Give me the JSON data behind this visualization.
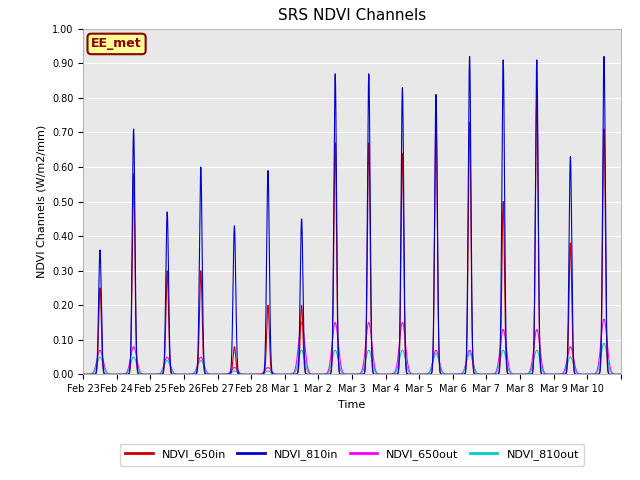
{
  "title": "SRS NDVI Channels",
  "xlabel": "Time",
  "ylabel": "NDVI Channels (W/m2/mm)",
  "ylim": [
    0.0,
    1.0
  ],
  "yticks": [
    0.0,
    0.1,
    0.2,
    0.3,
    0.4,
    0.5,
    0.6,
    0.7,
    0.8,
    0.9,
    1.0
  ],
  "annotation_text": "EE_met",
  "bg_color": "#e8e8e8",
  "line_colors": {
    "NDVI_650in": "#cc0000",
    "NDVI_810in": "#0000cc",
    "NDVI_650out": "#ff00ff",
    "NDVI_810out": "#00cccc"
  },
  "x_tick_labels": [
    "Feb 23",
    "Feb 24",
    "Feb 25",
    "Feb 26",
    "Feb 27",
    "Feb 28",
    "Mar 1",
    "Mar 2",
    "Mar 3",
    "Mar 4",
    "Mar 5",
    "Mar 6",
    "Mar 7",
    "Mar 8",
    "Mar 9",
    "Mar 10"
  ],
  "peaks_810in": [
    0.36,
    0.71,
    0.47,
    0.6,
    0.43,
    0.59,
    0.45,
    0.87,
    0.87,
    0.83,
    0.81,
    0.92,
    0.91,
    0.91,
    0.63,
    0.92
  ],
  "peaks_650in": [
    0.25,
    0.58,
    0.3,
    0.3,
    0.08,
    0.2,
    0.2,
    0.67,
    0.67,
    0.64,
    0.73,
    0.73,
    0.5,
    0.81,
    0.38,
    0.71
  ],
  "peaks_650out": [
    0.07,
    0.08,
    0.05,
    0.05,
    0.02,
    0.02,
    0.15,
    0.15,
    0.15,
    0.15,
    0.07,
    0.07,
    0.13,
    0.13,
    0.08,
    0.16
  ],
  "peaks_810out": [
    0.05,
    0.05,
    0.04,
    0.04,
    0.01,
    0.01,
    0.07,
    0.07,
    0.07,
    0.07,
    0.06,
    0.06,
    0.07,
    0.07,
    0.05,
    0.09
  ],
  "sigma_in": 0.04,
  "sigma_out": 0.09,
  "title_fontsize": 11,
  "label_fontsize": 8,
  "tick_fontsize": 7,
  "legend_fontsize": 8
}
